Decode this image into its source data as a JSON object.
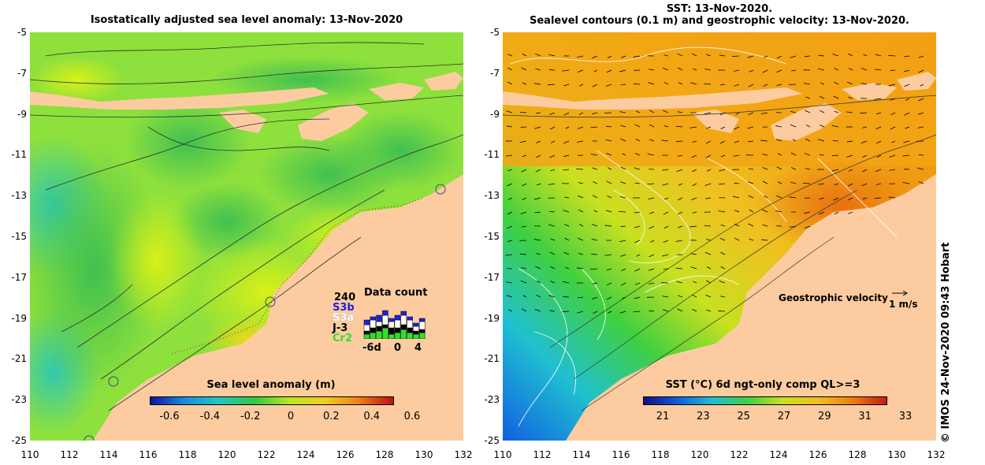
{
  "left_panel": {
    "title": "Isostatically adjusted sea level anomaly: 13-Nov-2020",
    "colorbar": {
      "label": "Sea level anomaly (m)",
      "ticks": [
        "-0.6",
        "-0.4",
        "-0.2",
        "0",
        "0.2",
        "0.4",
        "0.6"
      ],
      "colors": [
        "#1010a8",
        "#1890e0",
        "#20c8c0",
        "#30c840",
        "#b8e820",
        "#f0d020",
        "#f08010",
        "#c01010"
      ]
    },
    "data_count": {
      "title": "Data count",
      "max_label": "240",
      "satellites": [
        {
          "name": "S3b",
          "color": "#2020e0"
        },
        {
          "name": "S3a",
          "color": "#ffffff"
        },
        {
          "name": "J-3",
          "color": "#000000"
        },
        {
          "name": "Cr2",
          "color": "#30e030"
        }
      ],
      "x_ticks": [
        "-6d",
        "0",
        "4"
      ]
    }
  },
  "right_panel": {
    "title_line1": "SST: 13-Nov-2020.",
    "title_line2": "Sealevel contours (0.1 m) and geostrophic velocity: 13-Nov-2020.",
    "colorbar": {
      "label": "SST (°C) 6d ngt-only comp QL>=3",
      "ticks": [
        "21",
        "23",
        "25",
        "27",
        "29",
        "31",
        "33"
      ],
      "colors": [
        "#101080",
        "#1060e0",
        "#20c0d0",
        "#40d040",
        "#c8e020",
        "#f0c020",
        "#f08010",
        "#c02010"
      ]
    },
    "velocity_legend": {
      "label": "Geostrophic velocity",
      "scale": "1 m/s"
    }
  },
  "y_axis_labels": [
    "-5",
    "-7",
    "-9",
    "-11",
    "-13",
    "-15",
    "-17",
    "-19",
    "-21",
    "-23",
    "-25"
  ],
  "x_axis_labels": [
    "110",
    "112",
    "114",
    "116",
    "118",
    "120",
    "122",
    "124",
    "126",
    "128",
    "130",
    "132"
  ],
  "credit": "© IMOS 24-Nov-2020 09:43 Hobart",
  "colors": {
    "land": "#fccca0",
    "left_ocean": "#8ee03c",
    "right_ocean": "#f2a414"
  }
}
